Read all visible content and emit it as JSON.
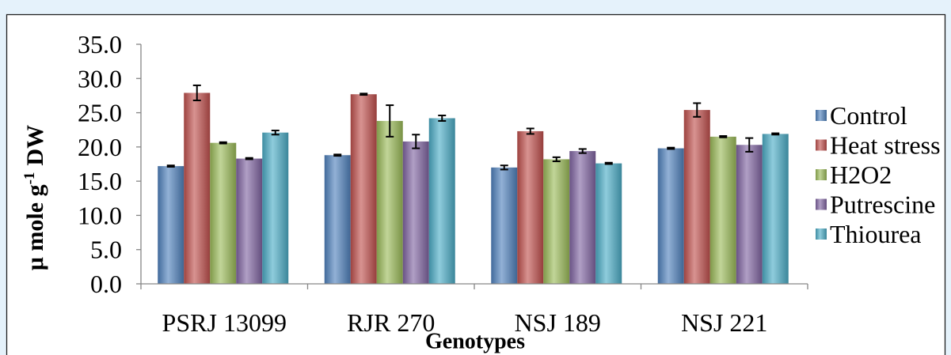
{
  "chart_data": {
    "type": "bar",
    "xlabel": "Genotypes",
    "ylabel": {
      "base": "μ mole g",
      "sup": "-1",
      "suffix": "DW"
    },
    "ylim": [
      0,
      35
    ],
    "yticks": [
      {
        "value": 0,
        "label": "0.0"
      },
      {
        "value": 5,
        "label": "5.0"
      },
      {
        "value": 10,
        "label": "10.0"
      },
      {
        "value": 15,
        "label": "15.0"
      },
      {
        "value": 20,
        "label": "20.0"
      },
      {
        "value": 25,
        "label": "25.0"
      },
      {
        "value": 30,
        "label": "30.0"
      },
      {
        "value": 35,
        "label": "35.0"
      }
    ],
    "categories": [
      "PSRJ 13099",
      "RJR 270",
      "NSJ 189",
      "NSJ 221"
    ],
    "series": [
      {
        "name": "Control",
        "color": "#4f81bd",
        "values": [
          17.2,
          18.8,
          17.0,
          19.8
        ],
        "errors": [
          0.1,
          0.1,
          0.3,
          0.1
        ]
      },
      {
        "name": "Heat stress",
        "color": "#c0504d",
        "values": [
          27.9,
          27.7,
          22.3,
          25.4
        ],
        "errors": [
          1.1,
          0.1,
          0.4,
          1.0
        ]
      },
      {
        "name": "H2O2",
        "color": "#9bbb59",
        "values": [
          20.6,
          23.8,
          18.2,
          21.5
        ],
        "errors": [
          0.1,
          2.3,
          0.3,
          0.1
        ]
      },
      {
        "name": "Putrescine",
        "color": "#8064a2",
        "values": [
          18.3,
          20.8,
          19.4,
          20.3
        ],
        "errors": [
          0.1,
          1.0,
          0.3,
          1.0
        ]
      },
      {
        "name": "Thiourea",
        "color": "#4bacc6",
        "values": [
          22.1,
          24.2,
          17.6,
          21.9
        ],
        "errors": [
          0.3,
          0.4,
          0.1,
          0.1
        ]
      }
    ],
    "error_bars": true,
    "grid": false,
    "legend_position": "right"
  },
  "colors": {
    "page_background": "#e5f2fb",
    "chart_background": "#ffffff",
    "chart_border": "#1f1f1f",
    "axis": "#868686",
    "error_bar": "#000000"
  }
}
